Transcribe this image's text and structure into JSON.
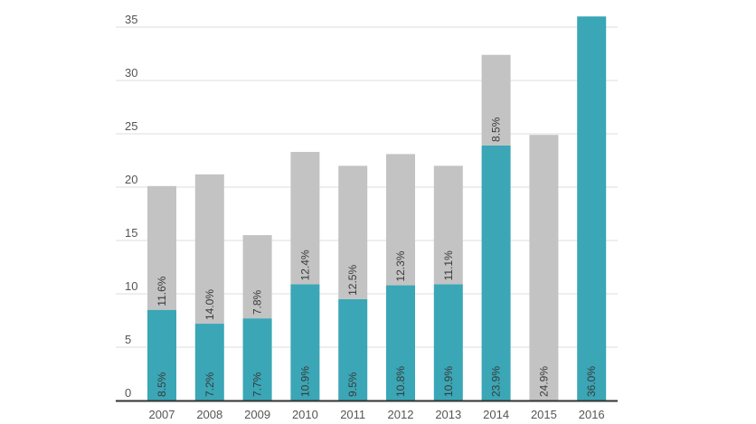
{
  "chart_data": {
    "type": "bar",
    "stacked": true,
    "categories": [
      "2007",
      "2008",
      "2009",
      "2010",
      "2011",
      "2012",
      "2013",
      "2014",
      "2015",
      "2016"
    ],
    "series": [
      {
        "values": [
          8.5,
          7.2,
          7.7,
          10.9,
          9.5,
          10.8,
          10.9,
          23.9,
          0,
          36.0
        ],
        "labels": [
          "8.5%",
          "7.2%",
          "7.7%",
          "10.9%",
          "9.5%",
          "10.8%",
          "10.9%",
          "23.9%",
          "",
          "36.0%"
        ],
        "color": "#3aa6b6"
      },
      {
        "values": [
          11.6,
          14.0,
          7.8,
          12.4,
          12.5,
          12.3,
          11.1,
          8.5,
          24.9,
          0
        ],
        "labels": [
          "11.6%",
          "14.0%",
          "7.8%",
          "12.4%",
          "12.5%",
          "12.3%",
          "11.1%",
          "8.5%",
          "24.9%",
          ""
        ],
        "color": "#c3c3c3"
      }
    ],
    "ylim": [
      0,
      35
    ],
    "yticks": [
      "0",
      "5",
      "10",
      "15",
      "20",
      "25",
      "30",
      "35"
    ],
    "grid": true,
    "title": "",
    "xlabel": "",
    "ylabel": ""
  }
}
